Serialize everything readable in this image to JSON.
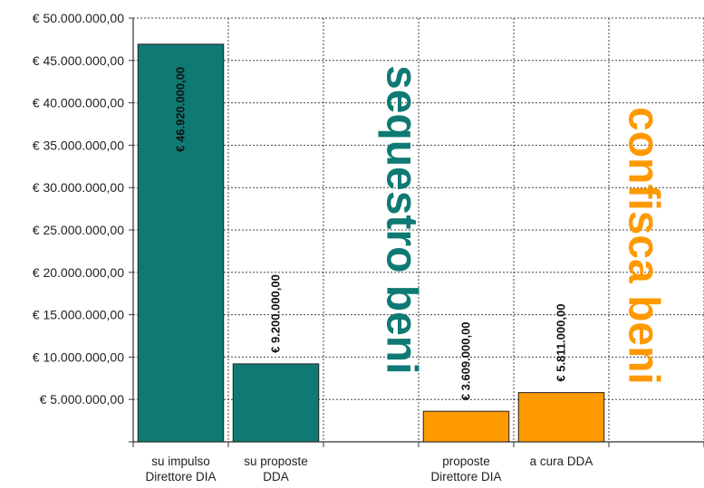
{
  "chart_data": {
    "type": "bar",
    "categories": [
      [
        "su impulso",
        "Direttore DIA"
      ],
      [
        "su proposte",
        "DDA"
      ],
      [
        "",
        ""
      ],
      [
        "proposte",
        "Direttore DIA"
      ],
      [
        "a cura DDA",
        ""
      ],
      [
        "",
        ""
      ]
    ],
    "values": [
      46920000,
      9200000,
      null,
      3609000,
      5811000,
      null
    ],
    "data_labels": [
      "€ 46.920.000,00",
      "€ 9.200.000,00",
      "",
      "€ 3.609.000,00",
      "€ 5.811.000,00",
      ""
    ],
    "bar_colors": [
      "#0f7a73",
      "#0f7a73",
      null,
      "#ff9900",
      "#ff9900",
      null
    ],
    "y_ticks": [
      {
        "value": 0,
        "label": ""
      },
      {
        "value": 5000000,
        "label": "€ 5.000.000,00"
      },
      {
        "value": 10000000,
        "label": "€ 10.000.000,00"
      },
      {
        "value": 15000000,
        "label": "€ 15.000.000,00"
      },
      {
        "value": 20000000,
        "label": "€ 20.000.000,00"
      },
      {
        "value": 25000000,
        "label": "€ 25.000.000,00"
      },
      {
        "value": 30000000,
        "label": "€ 30.000.000,00"
      },
      {
        "value": 35000000,
        "label": "€ 35.000.000,00"
      },
      {
        "value": 40000000,
        "label": "€ 40.000.000,00"
      },
      {
        "value": 45000000,
        "label": "€ 45.000.000,00"
      },
      {
        "value": 50000000,
        "label": "€ 50.000.000,00"
      }
    ],
    "ylim": [
      0,
      50000000
    ],
    "grid": true,
    "annotations": [
      {
        "text": "sequestro beni",
        "color": "#0f7a73"
      },
      {
        "text": "confisca beni",
        "color": "#ff9900"
      }
    ]
  }
}
